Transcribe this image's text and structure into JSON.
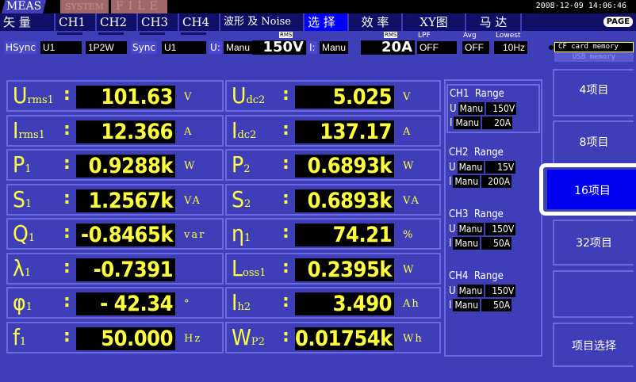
{
  "mode_tabs": [
    "MEAS",
    "SYSTEM",
    "FILE"
  ],
  "datetime": "2008-12-09 14:06:46",
  "page_label": "PAGE",
  "tabs": [
    {
      "label": "矢 量",
      "selected": false
    },
    {
      "label": "CH1",
      "selected": false
    },
    {
      "label": "CH2",
      "selected": false
    },
    {
      "label": "CH3",
      "selected": false
    },
    {
      "label": "CH4",
      "selected": false
    },
    {
      "label": "波形 及 Noise",
      "selected": false
    },
    {
      "label": "选 择",
      "selected": true
    },
    {
      "label": "效 率",
      "selected": false
    },
    {
      "label": "XY图",
      "selected": false
    },
    {
      "label": "马 达",
      "selected": false
    }
  ],
  "settings": {
    "hsync_label": "HSync",
    "hsync": "U1",
    "wiring": "1P2W",
    "sync_label": "Sync",
    "sync": "U1",
    "u_label": "U:",
    "u_mode": "Manu",
    "u_range": "150V",
    "rms1": "RMS",
    "i_label": "I:",
    "i_mode": "Manu",
    "i_range": "20A",
    "rms2": "RMS",
    "lpf_label": "LPF",
    "lpf": "OFF",
    "avg_label": "Avg",
    "avg": "OFF",
    "lowest_label": "Lowest",
    "lowest": "10Hz"
  },
  "storage": {
    "cf": "CF card memory",
    "usb": "USB memory"
  },
  "left": [
    {
      "sym": "U",
      "sub": "rms1",
      "value": "101.63",
      "unit": "V"
    },
    {
      "sym": "I",
      "sub": "rms1",
      "value": "12.366",
      "unit": "A"
    },
    {
      "sym": "P",
      "sub": "1",
      "value": "0.9288k",
      "unit": "W"
    },
    {
      "sym": "S",
      "sub": "1",
      "value": "1.2567k",
      "unit": "VA"
    },
    {
      "sym": "Q",
      "sub": "1",
      "value": "-0.8465k",
      "unit": "var"
    },
    {
      "sym": "λ",
      "sub": "1",
      "value": "-0.7391",
      "unit": ""
    },
    {
      "sym": "φ",
      "sub": "1",
      "value": "- 42.34",
      "unit": "°"
    },
    {
      "sym": "f",
      "sub": "1",
      "value": "50.000",
      "unit": "Hz"
    }
  ],
  "right": [
    {
      "sym": "U",
      "sub": "dc2",
      "value": "5.025",
      "unit": "V"
    },
    {
      "sym": "I",
      "sub": "dc2",
      "value": "137.17",
      "unit": "A"
    },
    {
      "sym": "P",
      "sub": "2",
      "value": "0.6893k",
      "unit": "W"
    },
    {
      "sym": "S",
      "sub": "2",
      "value": "0.6893k",
      "unit": "VA"
    },
    {
      "sym": "η",
      "sub": "1",
      "value": "74.21",
      "unit": "%"
    },
    {
      "sym": "L",
      "sub": "oss1",
      "value": "0.2395k",
      "unit": "W"
    },
    {
      "sym": "I",
      "sub": "h2",
      "value": "3.490",
      "unit": "Ah"
    },
    {
      "sym": "W",
      "sub": "P2",
      "value": "0.01754k",
      "unit": "Wh"
    }
  ],
  "ranges": [
    {
      "title": "CH1  Range",
      "u_mode": "Manu",
      "u": "150V",
      "i_mode": "Manu",
      "i": "20A"
    },
    {
      "title": "CH2  Range",
      "u_mode": "Manu",
      "u": "15V",
      "i_mode": "Manu",
      "i": "200A"
    },
    {
      "title": "CH3  Range",
      "u_mode": "Manu",
      "u": "150V",
      "i_mode": "Manu",
      "i": "50A"
    },
    {
      "title": "CH4  Range",
      "u_mode": "Manu",
      "u": "150V",
      "i_mode": "Manu",
      "i": "50A"
    }
  ],
  "buttons": {
    "b4": "4项目",
    "b8": "8项目",
    "b16": "16项目",
    "b32": "32项目",
    "select": "项目选择",
    "selected": "16项目"
  }
}
